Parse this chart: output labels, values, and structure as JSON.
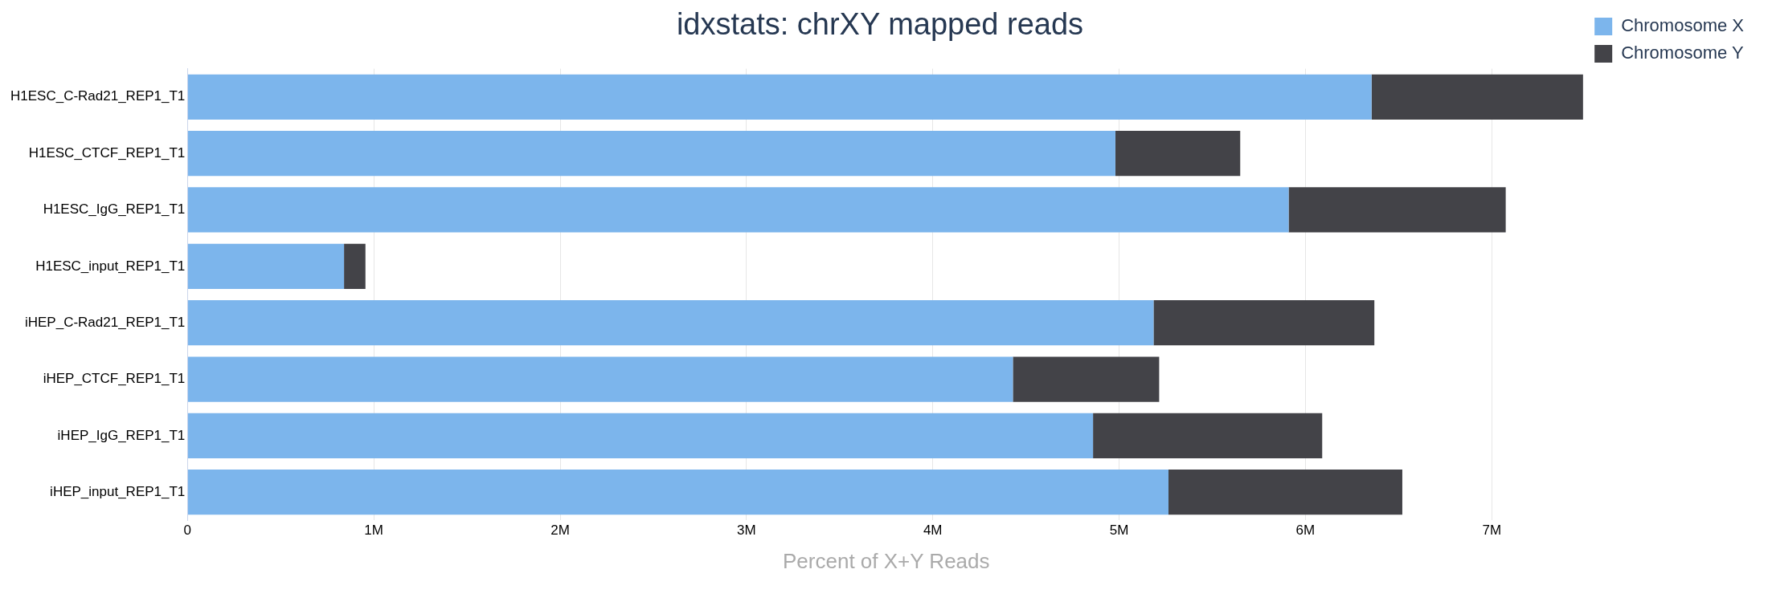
{
  "chart_data": {
    "type": "bar",
    "title": "idxstats: chrXY mapped reads",
    "orientation": "horizontal",
    "stacked": true,
    "categories": [
      "H1ESC_C-Rad21_REP1_T1",
      "H1ESC_CTCF_REP1_T1",
      "H1ESC_IgG_REP1_T1",
      "H1ESC_input_REP1_T1",
      "iHEP_C-Rad21_REP1_T1",
      "iHEP_CTCF_REP1_T1",
      "iHEP_IgG_REP1_T1",
      "iHEP_input_REP1_T1"
    ],
    "series": [
      {
        "name": "Chromosome X",
        "color": "#7cb5ec",
        "values": [
          6355000,
          4980000,
          5910000,
          840000,
          5185000,
          4430000,
          4860000,
          5265000
        ]
      },
      {
        "name": "Chromosome Y",
        "color": "#434348",
        "values": [
          1135000,
          670000,
          1165000,
          115000,
          1185000,
          785000,
          1230000,
          1255000
        ]
      }
    ],
    "xlabel": "Percent of X+Y Reads",
    "xlim": [
      0,
      7500000
    ],
    "xticks": [
      0,
      {
        "value": 1000000,
        "label": "1M"
      },
      {
        "value": 2000000,
        "label": "2M"
      },
      {
        "value": 3000000,
        "label": "3M"
      },
      {
        "value": 4000000,
        "label": "4M"
      },
      {
        "value": 5000000,
        "label": "5M"
      },
      {
        "value": 6000000,
        "label": "6M"
      },
      {
        "value": 7000000,
        "label": "7M"
      }
    ],
    "grid": "x",
    "legend": "top right"
  }
}
